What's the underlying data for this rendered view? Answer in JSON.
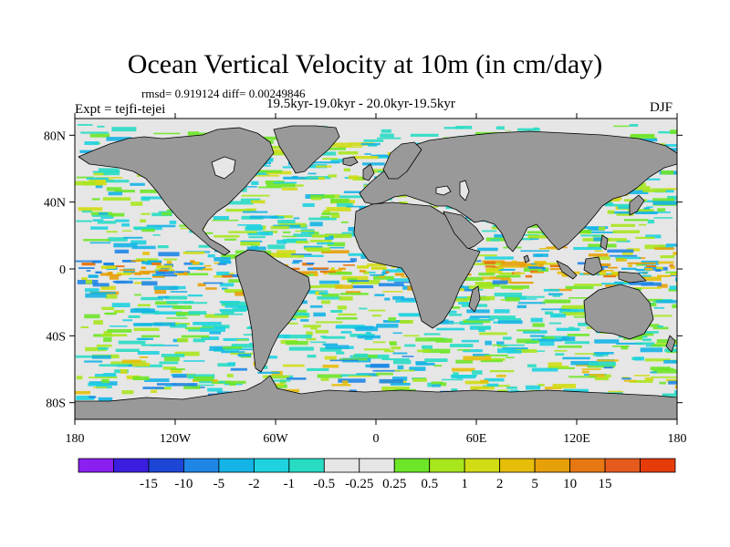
{
  "title": "Ocean Vertical Velocity at 10m (in cm/day)",
  "stats_line": "rmsd= 0.919124 diff= 0.00249846",
  "period": "19.5kyr-19.0kyr - 20.0kyr-19.5kyr",
  "experiment": "Expt = tejfi-tejei",
  "season": "DJF",
  "map": {
    "projection": "cylindrical equidistant",
    "lon_range": [
      -180,
      180
    ],
    "lat_range": [
      -90,
      90
    ],
    "land_color": "#999999",
    "lat_ticks": [
      {
        "value": 80,
        "label": "80N"
      },
      {
        "value": 40,
        "label": "40N"
      },
      {
        "value": 0,
        "label": "0"
      },
      {
        "value": -40,
        "label": "40S"
      },
      {
        "value": -80,
        "label": "80S"
      }
    ],
    "lon_ticks": [
      {
        "value": -180,
        "label": "180"
      },
      {
        "value": -120,
        "label": "120W"
      },
      {
        "value": -60,
        "label": "60W"
      },
      {
        "value": 0,
        "label": "0"
      },
      {
        "value": 60,
        "label": "60E"
      },
      {
        "value": 120,
        "label": "120E"
      },
      {
        "value": 180,
        "label": "180"
      }
    ]
  },
  "colorbar": {
    "colors": [
      "#8a1ff0",
      "#3b1ee0",
      "#1e46d6",
      "#1f86e6",
      "#14b4e6",
      "#1ed2e0",
      "#28dcc4",
      "#e6e6e6",
      "#e6e6e6",
      "#6ee628",
      "#a8e61e",
      "#d2dc14",
      "#e6be0a",
      "#e6a00a",
      "#e67814",
      "#e65a1e",
      "#e63c0a"
    ],
    "labels": [
      "-15",
      "-10",
      "-5",
      "-2",
      "-1",
      "-0.5",
      "-0.25",
      "0.25",
      "0.5",
      "1",
      "2",
      "5",
      "10",
      "15"
    ]
  }
}
